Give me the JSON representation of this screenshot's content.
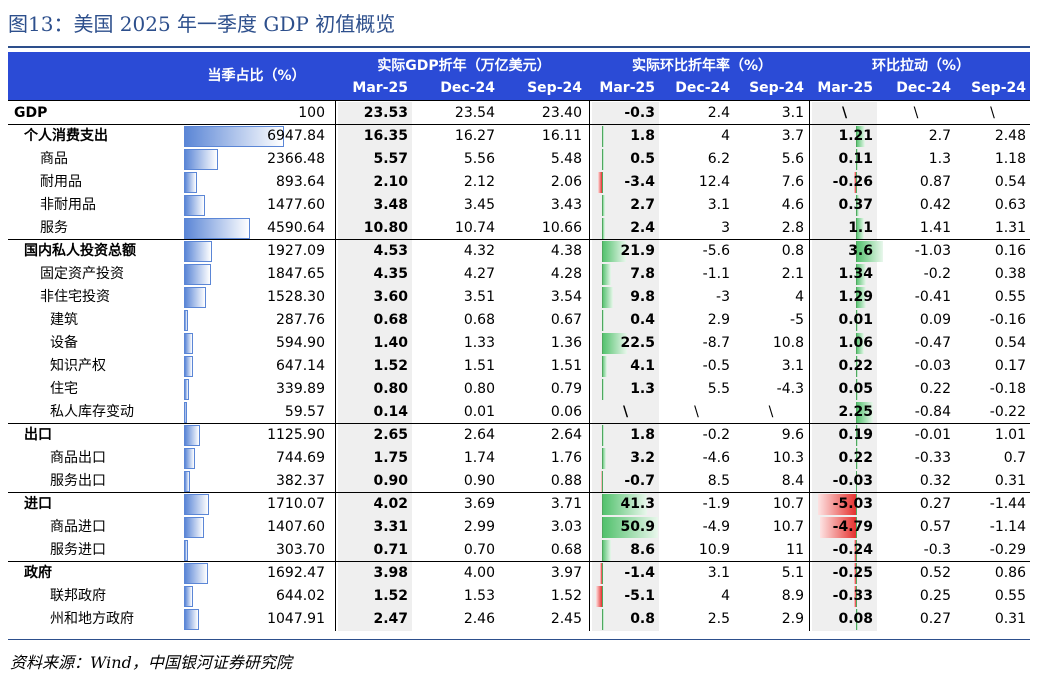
{
  "title": "图13：美国 2025 年一季度 GDP 初值概览",
  "footer": "资料来源：Wind，中国银河证券研究院",
  "header": {
    "share_label": "当季占比（%）",
    "group1": "实际GDP折年（万亿美元）",
    "group2": "实际环比折年率（%）",
    "group3": "环比拉动（%）",
    "periods": [
      "Mar-25",
      "Dec-24",
      "Sep-24",
      "Mar-25",
      "Dec-24",
      "Sep-24",
      "Mar-25",
      "Dec-24",
      "Sep-24"
    ]
  },
  "colors": {
    "header_bg": "#2b4bd6",
    "share_bar": "#5b86d6",
    "positive": "#4fc06a",
    "negative": "#e5312e",
    "title": "#2d4f8c"
  },
  "rows": [
    {
      "label": "GDP",
      "level": 0,
      "bold": true,
      "share": "100",
      "gdp": [
        "23.53",
        "23.54",
        "23.40"
      ],
      "qoq": [
        "-0.3",
        "2.4",
        "3.1"
      ],
      "contrib": [
        "\\",
        "\\",
        "\\"
      ]
    },
    {
      "label": "个人消费支出",
      "level": 1,
      "bold": true,
      "share": "6947.84",
      "gdp": [
        "16.35",
        "16.27",
        "16.11"
      ],
      "qoq": [
        "1.8",
        "4",
        "3.7"
      ],
      "contrib": [
        "1.21",
        "2.7",
        "2.48"
      ]
    },
    {
      "label": "商品",
      "level": 2,
      "bold": false,
      "share": "2366.48",
      "gdp": [
        "5.57",
        "5.56",
        "5.48"
      ],
      "qoq": [
        "0.5",
        "6.2",
        "5.6"
      ],
      "contrib": [
        "0.11",
        "1.3",
        "1.18"
      ]
    },
    {
      "label": "耐用品",
      "level": 2,
      "bold": false,
      "share": "893.64",
      "gdp": [
        "2.10",
        "2.12",
        "2.06"
      ],
      "qoq": [
        "-3.4",
        "12.4",
        "7.6"
      ],
      "contrib": [
        "-0.26",
        "0.87",
        "0.54"
      ]
    },
    {
      "label": "非耐用品",
      "level": 2,
      "bold": false,
      "share": "1477.60",
      "gdp": [
        "3.48",
        "3.45",
        "3.43"
      ],
      "qoq": [
        "2.7",
        "3.1",
        "4.6"
      ],
      "contrib": [
        "0.37",
        "0.42",
        "0.63"
      ]
    },
    {
      "label": "服务",
      "level": 2,
      "bold": false,
      "share": "4590.64",
      "gdp": [
        "10.80",
        "10.74",
        "10.66"
      ],
      "qoq": [
        "2.4",
        "3",
        "2.8"
      ],
      "contrib": [
        "1.1",
        "1.41",
        "1.31"
      ]
    },
    {
      "label": "国内私人投资总额",
      "level": 1,
      "bold": true,
      "share": "1927.09",
      "gdp": [
        "4.53",
        "4.32",
        "4.38"
      ],
      "qoq": [
        "21.9",
        "-5.6",
        "0.8"
      ],
      "contrib": [
        "3.6",
        "-1.03",
        "0.16"
      ]
    },
    {
      "label": "固定资产投资",
      "level": 2,
      "bold": false,
      "share": "1847.65",
      "gdp": [
        "4.35",
        "4.27",
        "4.28"
      ],
      "qoq": [
        "7.8",
        "-1.1",
        "2.1"
      ],
      "contrib": [
        "1.34",
        "-0.2",
        "0.38"
      ]
    },
    {
      "label": "非住宅投资",
      "level": 2,
      "bold": false,
      "share": "1528.30",
      "gdp": [
        "3.60",
        "3.51",
        "3.54"
      ],
      "qoq": [
        "9.8",
        "-3",
        "4"
      ],
      "contrib": [
        "1.29",
        "-0.41",
        "0.55"
      ]
    },
    {
      "label": "建筑",
      "level": 3,
      "bold": false,
      "share": "287.76",
      "gdp": [
        "0.68",
        "0.68",
        "0.67"
      ],
      "qoq": [
        "0.4",
        "2.9",
        "-5"
      ],
      "contrib": [
        "0.01",
        "0.09",
        "-0.16"
      ]
    },
    {
      "label": "设备",
      "level": 3,
      "bold": false,
      "share": "594.90",
      "gdp": [
        "1.40",
        "1.33",
        "1.36"
      ],
      "qoq": [
        "22.5",
        "-8.7",
        "10.8"
      ],
      "contrib": [
        "1.06",
        "-0.47",
        "0.54"
      ]
    },
    {
      "label": "知识产权",
      "level": 3,
      "bold": false,
      "share": "647.14",
      "gdp": [
        "1.52",
        "1.51",
        "1.51"
      ],
      "qoq": [
        "4.1",
        "-0.5",
        "3.1"
      ],
      "contrib": [
        "0.22",
        "-0.03",
        "0.17"
      ]
    },
    {
      "label": "住宅",
      "level": 3,
      "bold": false,
      "share": "339.89",
      "gdp": [
        "0.80",
        "0.80",
        "0.79"
      ],
      "qoq": [
        "1.3",
        "5.5",
        "-4.3"
      ],
      "contrib": [
        "0.05",
        "0.22",
        "-0.18"
      ]
    },
    {
      "label": "私人库存变动",
      "level": 3,
      "bold": false,
      "share": "59.57",
      "gdp": [
        "0.14",
        "0.01",
        "0.06"
      ],
      "qoq": [
        "\\",
        "\\",
        "\\"
      ],
      "contrib": [
        "2.25",
        "-0.84",
        "-0.22"
      ]
    },
    {
      "label": "出口",
      "level": 1,
      "bold": true,
      "share": "1125.90",
      "gdp": [
        "2.65",
        "2.64",
        "2.64"
      ],
      "qoq": [
        "1.8",
        "-0.2",
        "9.6"
      ],
      "contrib": [
        "0.19",
        "-0.01",
        "1.01"
      ]
    },
    {
      "label": "商品出口",
      "level": 3,
      "bold": false,
      "share": "744.69",
      "gdp": [
        "1.75",
        "1.74",
        "1.76"
      ],
      "qoq": [
        "3.2",
        "-4.6",
        "10.3"
      ],
      "contrib": [
        "0.22",
        "-0.33",
        "0.7"
      ]
    },
    {
      "label": "服务出口",
      "level": 3,
      "bold": false,
      "share": "382.37",
      "gdp": [
        "0.90",
        "0.90",
        "0.88"
      ],
      "qoq": [
        "-0.7",
        "8.5",
        "8.4"
      ],
      "contrib": [
        "-0.03",
        "0.32",
        "0.31"
      ]
    },
    {
      "label": "进口",
      "level": 1,
      "bold": true,
      "share": "1710.07",
      "gdp": [
        "4.02",
        "3.69",
        "3.71"
      ],
      "qoq": [
        "41.3",
        "-1.9",
        "10.7"
      ],
      "contrib": [
        "-5.03",
        "0.27",
        "-1.44"
      ]
    },
    {
      "label": "商品进口",
      "level": 3,
      "bold": false,
      "share": "1407.60",
      "gdp": [
        "3.31",
        "2.99",
        "3.03"
      ],
      "qoq": [
        "50.9",
        "-4.9",
        "10.7"
      ],
      "contrib": [
        "-4.79",
        "0.57",
        "-1.14"
      ]
    },
    {
      "label": "服务进口",
      "level": 3,
      "bold": false,
      "share": "303.70",
      "gdp": [
        "0.71",
        "0.70",
        "0.68"
      ],
      "qoq": [
        "8.6",
        "10.9",
        "11"
      ],
      "contrib": [
        "-0.24",
        "-0.3",
        "-0.29"
      ]
    },
    {
      "label": "政府",
      "level": 1,
      "bold": true,
      "share": "1692.47",
      "gdp": [
        "3.98",
        "4.00",
        "3.97"
      ],
      "qoq": [
        "-1.4",
        "3.1",
        "5.1"
      ],
      "contrib": [
        "-0.25",
        "0.52",
        "0.86"
      ]
    },
    {
      "label": "联邦政府",
      "level": 3,
      "bold": false,
      "share": "644.02",
      "gdp": [
        "1.52",
        "1.53",
        "1.52"
      ],
      "qoq": [
        "-5.1",
        "4",
        "8.9"
      ],
      "contrib": [
        "-0.33",
        "0.25",
        "0.55"
      ]
    },
    {
      "label": "州和地方政府",
      "level": 3,
      "bold": false,
      "share": "1047.91",
      "gdp": [
        "2.47",
        "2.46",
        "2.45"
      ],
      "qoq": [
        "0.8",
        "2.5",
        "2.9"
      ],
      "contrib": [
        "0.08",
        "0.27",
        "0.31"
      ]
    }
  ]
}
